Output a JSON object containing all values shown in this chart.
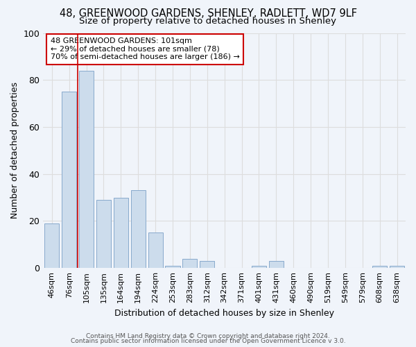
{
  "title1": "48, GREENWOOD GARDENS, SHENLEY, RADLETT, WD7 9LF",
  "title2": "Size of property relative to detached houses in Shenley",
  "xlabel": "Distribution of detached houses by size in Shenley",
  "ylabel": "Number of detached properties",
  "categories": [
    "46sqm",
    "76sqm",
    "105sqm",
    "135sqm",
    "164sqm",
    "194sqm",
    "224sqm",
    "253sqm",
    "283sqm",
    "312sqm",
    "342sqm",
    "371sqm",
    "401sqm",
    "431sqm",
    "460sqm",
    "490sqm",
    "519sqm",
    "549sqm",
    "579sqm",
    "608sqm",
    "638sqm"
  ],
  "values": [
    19,
    75,
    84,
    29,
    30,
    33,
    15,
    1,
    4,
    3,
    0,
    0,
    1,
    3,
    0,
    0,
    0,
    0,
    0,
    1,
    1
  ],
  "bar_color": "#ccdcec",
  "bar_edge_color": "#88aacc",
  "grid_color": "#dddddd",
  "bg_color": "#f0f4fa",
  "plot_bg_color": "#f0f4fa",
  "red_line_x": 1.5,
  "annotation_text": "48 GREENWOOD GARDENS: 101sqm\n← 29% of detached houses are smaller (78)\n70% of semi-detached houses are larger (186) →",
  "annotation_box_facecolor": "#ffffff",
  "annotation_box_edgecolor": "#cc0000",
  "footer1": "Contains HM Land Registry data © Crown copyright and database right 2024.",
  "footer2": "Contains public sector information licensed under the Open Government Licence v 3.0.",
  "ylim": [
    0,
    100
  ],
  "title_fontsize": 10.5,
  "subtitle_fontsize": 9.5,
  "tick_fontsize": 8,
  "ylabel_fontsize": 9,
  "xlabel_fontsize": 9,
  "annotation_fontsize": 8,
  "footer_fontsize": 6.5
}
